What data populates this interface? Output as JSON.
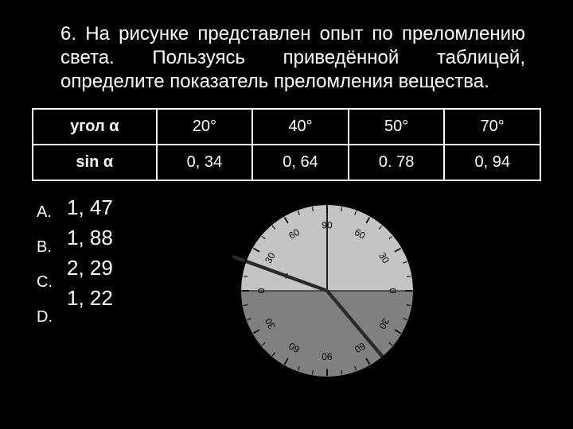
{
  "question": {
    "number": "6.",
    "text": "На рисунке представлен опыт по преломлению света. Пользуясь приведённой таблицей, определите показатель преломления вещества."
  },
  "table": {
    "row_label_angle": "угол α",
    "row_label_sin": "sin α",
    "columns": [
      "20°",
      "40°",
      "50°",
      "70°"
    ],
    "sines": [
      "0, 34",
      "0, 64",
      "0. 78",
      "0, 94"
    ],
    "border_color": "#ffffff",
    "cell_fontsize": 20
  },
  "answers": {
    "labels": [
      "A.",
      "B.",
      "C.",
      "D."
    ],
    "values": [
      "1, 47",
      "1, 88",
      "2, 29",
      "1, 22"
    ],
    "label_fontsize": 20,
    "value_fontsize": 26
  },
  "diagram": {
    "type": "protractor-refraction",
    "background_fill": "#c4c4c4",
    "medium_fill": "#808080",
    "outline": "#000000",
    "tick_interval_deg": 10,
    "tick_color": "#000000",
    "tick_len_major": 8,
    "tick_len_minor": 5,
    "labels_top": [
      {
        "angle_from_vertical": -90,
        "text": "0"
      },
      {
        "angle_from_vertical": -60,
        "text": "30"
      },
      {
        "angle_from_vertical": -30,
        "text": "60"
      },
      {
        "angle_from_vertical": 0,
        "text": "90"
      },
      {
        "angle_from_vertical": 30,
        "text": "60"
      },
      {
        "angle_from_vertical": 60,
        "text": "30"
      },
      {
        "angle_from_vertical": 90,
        "text": "0"
      }
    ],
    "labels_bottom": [
      {
        "angle_from_vertical": -60,
        "text": "30"
      },
      {
        "angle_from_vertical": -30,
        "text": "60"
      },
      {
        "angle_from_vertical": 0,
        "text": "90"
      },
      {
        "angle_from_vertical": 30,
        "text": "60"
      },
      {
        "angle_from_vertical": 60,
        "text": "30"
      }
    ],
    "label_fontsize": 11,
    "label_radius": 75,
    "tick_outer_radius": 98,
    "incident_angle_deg": 70,
    "refracted_angle_deg": 40,
    "ray_color": "#2a2a2a",
    "ray_width": 4,
    "normal_line": true,
    "horizon_line": true
  },
  "colors": {
    "background": "#000000",
    "text": "#ffffff"
  }
}
